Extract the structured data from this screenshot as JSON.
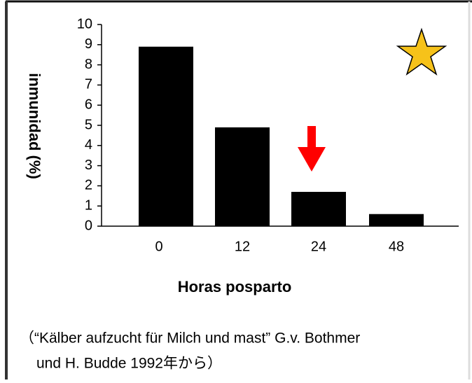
{
  "chart_data": {
    "type": "bar",
    "ylabel": "inmunidad (%)",
    "xlabel": "Horas posparto",
    "categories": [
      "0",
      "12",
      "24",
      "48"
    ],
    "values": [
      8.9,
      4.9,
      1.7,
      0.6
    ],
    "color": "#000000",
    "ylim": [
      0,
      10
    ],
    "yticks": [
      0,
      1,
      2,
      3,
      4,
      5,
      6,
      7,
      8,
      9,
      10
    ],
    "grid": false,
    "caption": [
      "（“Kälber aufzucht für Milch und mast” G.v. Bothmer",
      "und H. Budde 1992年から）"
    ]
  }
}
